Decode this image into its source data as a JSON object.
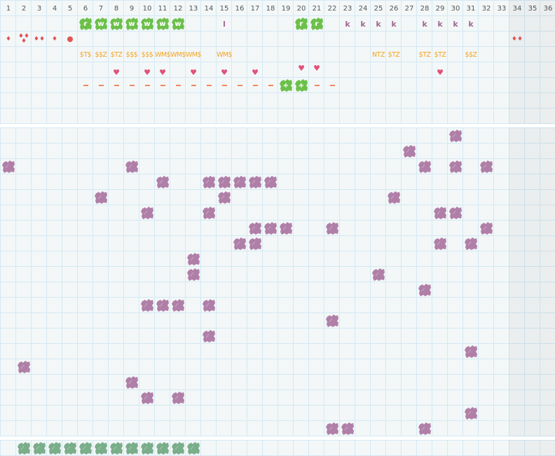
{
  "columns": [
    "1",
    "2",
    "3",
    "4",
    "5",
    "6",
    "7",
    "8",
    "9",
    "10",
    "11",
    "12",
    "13",
    "14",
    "15",
    "16",
    "17",
    "18",
    "19",
    "20",
    "21",
    "22",
    "23",
    "24",
    "25",
    "26",
    "27",
    "28",
    "29",
    "30",
    "31",
    "32",
    "33",
    "34",
    "35",
    "36"
  ],
  "colors": {
    "green": "#6cc04a",
    "purple": "#b07fa8",
    "teal": "#7aae8a",
    "orange": "#f5a623",
    "red": "#e05555",
    "pink": "#e0527a",
    "dash": "#f08a5d",
    "grid": "#d4e9f3",
    "bg": "#f3f7f8"
  },
  "top_rows": {
    "letters": [
      {
        "col": 6,
        "text": "r",
        "kind": "green"
      },
      {
        "col": 7,
        "text": "w",
        "kind": "green"
      },
      {
        "col": 8,
        "text": "w",
        "kind": "green"
      },
      {
        "col": 9,
        "text": "w",
        "kind": "green"
      },
      {
        "col": 10,
        "text": "w",
        "kind": "green"
      },
      {
        "col": 11,
        "text": "w",
        "kind": "green"
      },
      {
        "col": 12,
        "text": "w",
        "kind": "green"
      },
      {
        "col": 15,
        "text": "l",
        "kind": "plain"
      },
      {
        "col": 20,
        "text": "r",
        "kind": "green"
      },
      {
        "col": 21,
        "text": "r",
        "kind": "green"
      },
      {
        "col": 23,
        "text": "k",
        "kind": "plain"
      },
      {
        "col": 24,
        "text": "k",
        "kind": "plain"
      },
      {
        "col": 25,
        "text": "k",
        "kind": "plain"
      },
      {
        "col": 26,
        "text": "k",
        "kind": "plain"
      },
      {
        "col": 28,
        "text": "k",
        "kind": "plain"
      },
      {
        "col": 29,
        "text": "k",
        "kind": "plain"
      },
      {
        "col": 30,
        "text": "k",
        "kind": "plain"
      },
      {
        "col": 31,
        "text": "k",
        "kind": "plain"
      }
    ],
    "drops": [
      {
        "col": 1,
        "count": 1
      },
      {
        "col": 2,
        "count": 3
      },
      {
        "col": 3,
        "count": 2
      },
      {
        "col": 4,
        "count": 1
      },
      {
        "col": 5,
        "count": 0
      },
      {
        "col": 34,
        "count": 2
      }
    ],
    "tags": [
      {
        "col": 6,
        "text": "$T$"
      },
      {
        "col": 7,
        "text": "$$Z"
      },
      {
        "col": 8,
        "text": "$TZ"
      },
      {
        "col": 9,
        "text": "$$$"
      },
      {
        "col": 10,
        "text": "$$$"
      },
      {
        "col": 11,
        "text": "WM$"
      },
      {
        "col": 12,
        "text": "WM$"
      },
      {
        "col": 13,
        "text": "WM$"
      },
      {
        "col": 15,
        "text": "WM$"
      },
      {
        "col": 25,
        "text": "NTZ"
      },
      {
        "col": 26,
        "text": "$TZ"
      },
      {
        "col": 28,
        "text": "$TZ"
      },
      {
        "col": 29,
        "text": "$TZ"
      },
      {
        "col": 31,
        "text": "$$Z"
      }
    ],
    "hearts": [
      {
        "col": 8,
        "pos": "low"
      },
      {
        "col": 10,
        "pos": "low"
      },
      {
        "col": 11,
        "pos": "low"
      },
      {
        "col": 13,
        "pos": "low"
      },
      {
        "col": 15,
        "pos": "low"
      },
      {
        "col": 17,
        "pos": "low"
      },
      {
        "col": 20,
        "pos": "high"
      },
      {
        "col": 21,
        "pos": "high"
      },
      {
        "col": 29,
        "pos": "low"
      }
    ],
    "dash_cols": [
      6,
      7,
      8,
      9,
      10,
      11,
      12,
      13,
      14,
      15,
      16,
      17,
      18,
      21,
      22
    ],
    "plus": [
      {
        "col": 19,
        "text": "+"
      },
      {
        "col": 20,
        "text": "+"
      }
    ]
  },
  "main_grid": [
    [
      30
    ],
    [
      27
    ],
    [
      1,
      9,
      28,
      30,
      32
    ],
    [
      11,
      14,
      15,
      16,
      17,
      18
    ],
    [
      7,
      15,
      26
    ],
    [
      10,
      14,
      29,
      30
    ],
    [
      17,
      18,
      19,
      22,
      32
    ],
    [
      16,
      17,
      29,
      31
    ],
    [
      13
    ],
    [
      13,
      25
    ],
    [
      28
    ],
    [
      10,
      11,
      12,
      14
    ],
    [
      22
    ],
    [
      14
    ],
    [
      31
    ],
    [
      2
    ],
    [
      9
    ],
    [
      10,
      12
    ],
    [
      31
    ],
    [
      22,
      23,
      28
    ]
  ],
  "bottom_row": [
    2,
    3,
    4,
    5,
    6,
    7,
    8,
    9,
    10,
    11,
    12,
    13
  ]
}
